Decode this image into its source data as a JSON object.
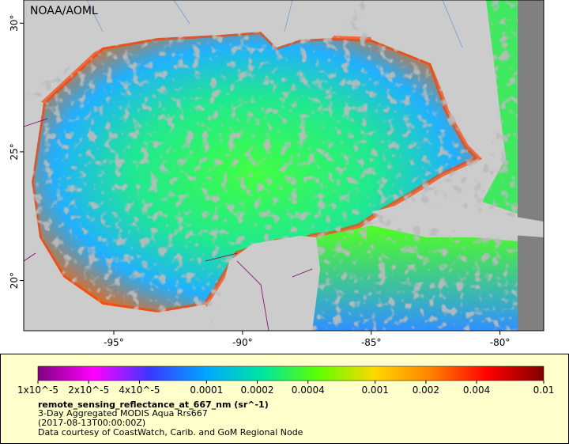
{
  "map": {
    "credit": "NOAA/AOML",
    "xlim": [
      -98.5,
      -78.3
    ],
    "ylim": [
      18.05,
      30.9
    ],
    "xticks": [
      {
        "value": -95,
        "label": "-95°"
      },
      {
        "value": -90,
        "label": "-90°"
      },
      {
        "value": -85,
        "label": "-85°"
      },
      {
        "value": -80,
        "label": "-80°"
      }
    ],
    "yticks": [
      {
        "value": 20,
        "label": "20°"
      },
      {
        "value": 25,
        "label": "25°"
      },
      {
        "value": 30,
        "label": "30°"
      }
    ]
  },
  "legend": {
    "colorbar": {
      "scale": "log",
      "lim": [
        1e-05,
        0.01
      ],
      "colors": [
        "#800080",
        "#ff00ff",
        "#3838ff",
        "#00a8ff",
        "#00e6a0",
        "#60ff00",
        "#ffd800",
        "#ff8000",
        "#ff0000",
        "#800000"
      ],
      "ticks": [
        {
          "value": 1e-05,
          "label": "1x10^-5"
        },
        {
          "value": 2e-05,
          "label": "2x10^-5"
        },
        {
          "value": 4e-05,
          "label": "4x10^-5"
        },
        0.0001,
        0.0002,
        0.0004,
        0.001,
        0.002,
        0.004,
        0.01
      ]
    },
    "variable": "remote_sensing_reflectance_at_667_nm (sr^-1)",
    "lines": [
      "3-Day Aggregated MODIS Aqua Rrs667",
      "(2017-08-13T00:00:00Z)",
      "Data courtesy of CoastWatch, Carib. and GoM Regional Node"
    ]
  }
}
